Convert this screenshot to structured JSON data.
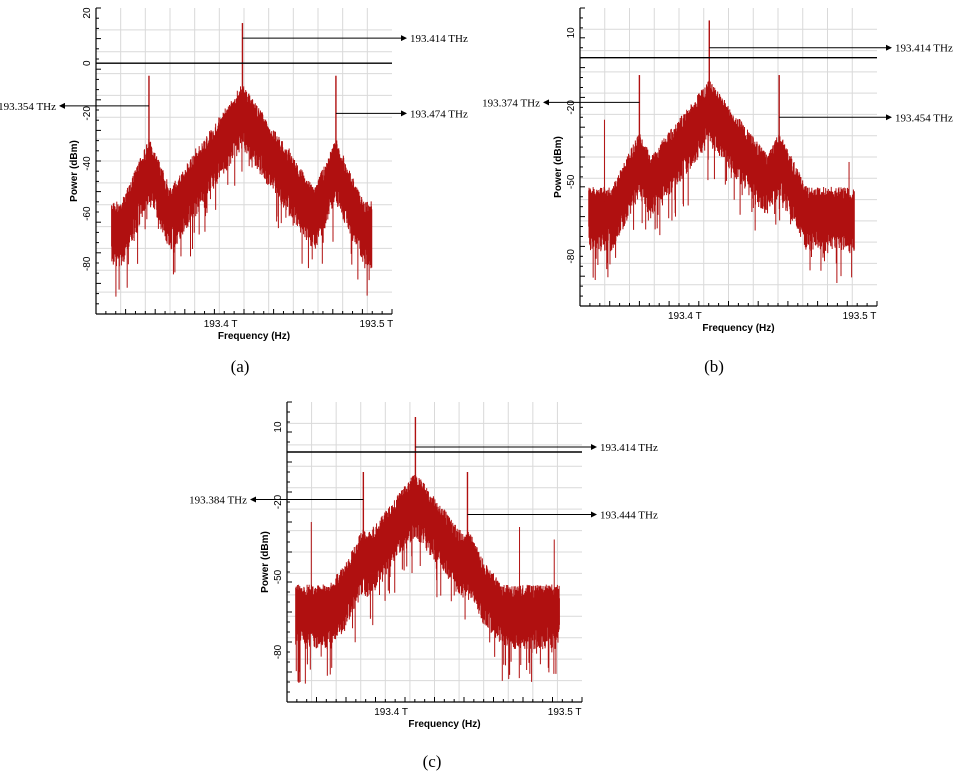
{
  "colors": {
    "trace": "#b01010",
    "grid": "#d9d9d9",
    "axis": "#000000",
    "plot_bg": "#ffffff"
  },
  "chart_data": [
    {
      "type": "line",
      "caption": "(a)",
      "xlabel": "Frequency (Hz)",
      "ylabel": "Power (dBm)",
      "xlim": [
        193.32,
        193.51
      ],
      "ylim": [
        -100,
        22
      ],
      "x_ticks": [
        193.4,
        193.5
      ],
      "x_tick_labels": [
        "193.4 T",
        "193.5 T"
      ],
      "y_ticks": [
        20,
        0,
        -20,
        -40,
        -60,
        -80
      ],
      "y_tick_labels": [
        "20",
        "0",
        "-20",
        "-40",
        "-60",
        "-80"
      ],
      "reference_line_dbm": 0,
      "grid": true,
      "noise_floor": {
        "x_range": [
          193.33,
          193.497
        ],
        "level_dbm": -65
      },
      "carrier": {
        "x": 193.414,
        "peak_dbm": 16,
        "pedestal_dbm": -18
      },
      "sidebands": [
        {
          "x": 193.354,
          "peak_dbm": -5,
          "pedestal_dbm": -40
        },
        {
          "x": 193.474,
          "peak_dbm": -5,
          "pedestal_dbm": -40
        }
      ],
      "minor_spurs": [
        {
          "x": 193.384,
          "peak_dbm": -34
        },
        {
          "x": 193.444,
          "peak_dbm": -34
        }
      ],
      "annotations": [
        {
          "text": "193.354 THz",
          "x": 193.354,
          "y": -17,
          "side": "left"
        },
        {
          "text": "193.414 THz",
          "x": 193.414,
          "y": 10,
          "side": "right"
        },
        {
          "text": "193.474 THz",
          "x": 193.474,
          "y": -20,
          "side": "right"
        }
      ]
    },
    {
      "type": "line",
      "caption": "(b)",
      "xlabel": "Frequency (Hz)",
      "ylabel": "Power (dBm)",
      "xlim": [
        193.34,
        193.51
      ],
      "ylim": [
        -100,
        20
      ],
      "x_ticks": [
        193.4,
        193.5
      ],
      "x_tick_labels": [
        "193.4 T",
        "193.5 T"
      ],
      "y_ticks": [
        10,
        -20,
        -50,
        -80
      ],
      "y_tick_labels": [
        "10",
        "-20",
        "-50",
        "-80"
      ],
      "reference_line_dbm": 0,
      "grid": true,
      "noise_floor": {
        "x_range": [
          193.345,
          193.497
        ],
        "level_dbm": -62
      },
      "carrier": {
        "x": 193.414,
        "peak_dbm": 15,
        "pedestal_dbm": -19
      },
      "sidebands": [
        {
          "x": 193.374,
          "peak_dbm": -7,
          "pedestal_dbm": -40
        },
        {
          "x": 193.454,
          "peak_dbm": -7,
          "pedestal_dbm": -40
        }
      ],
      "minor_spurs": [
        {
          "x": 193.354,
          "peak_dbm": -25
        },
        {
          "x": 193.494,
          "peak_dbm": -42
        }
      ],
      "annotations": [
        {
          "text": "193.374 THz",
          "x": 193.374,
          "y": -18,
          "side": "left"
        },
        {
          "text": "193.414 THz",
          "x": 193.414,
          "y": 4,
          "side": "right"
        },
        {
          "text": "193.454 THz",
          "x": 193.454,
          "y": -24,
          "side": "right"
        }
      ]
    },
    {
      "type": "line",
      "caption": "(c)",
      "xlabel": "Frequency (Hz)",
      "ylabel": "Power (dBm)",
      "xlim": [
        193.34,
        193.51
      ],
      "ylim": [
        -100,
        20
      ],
      "x_ticks": [
        193.4,
        193.5
      ],
      "x_tick_labels": [
        "193.4 T",
        "193.5 T"
      ],
      "y_ticks": [
        10,
        -20,
        -50,
        -80
      ],
      "y_tick_labels": [
        "10",
        "-20",
        "-50",
        "-80"
      ],
      "reference_line_dbm": 0,
      "grid": true,
      "noise_floor": {
        "x_range": [
          193.345,
          193.497
        ],
        "level_dbm": -63
      },
      "carrier": {
        "x": 193.414,
        "peak_dbm": 14,
        "pedestal_dbm": -18
      },
      "sidebands": [
        {
          "x": 193.384,
          "peak_dbm": -8,
          "pedestal_dbm": -40
        },
        {
          "x": 193.444,
          "peak_dbm": -8,
          "pedestal_dbm": -40
        }
      ],
      "minor_spurs": [
        {
          "x": 193.354,
          "peak_dbm": -28
        },
        {
          "x": 193.474,
          "peak_dbm": -30
        },
        {
          "x": 193.494,
          "peak_dbm": -35
        }
      ],
      "annotations": [
        {
          "text": "193.384 THz",
          "x": 193.384,
          "y": -19,
          "side": "left"
        },
        {
          "text": "193.414 THz",
          "x": 193.414,
          "y": 2,
          "side": "right"
        },
        {
          "text": "193.444 THz",
          "x": 193.444,
          "y": -25,
          "side": "right"
        }
      ]
    }
  ]
}
